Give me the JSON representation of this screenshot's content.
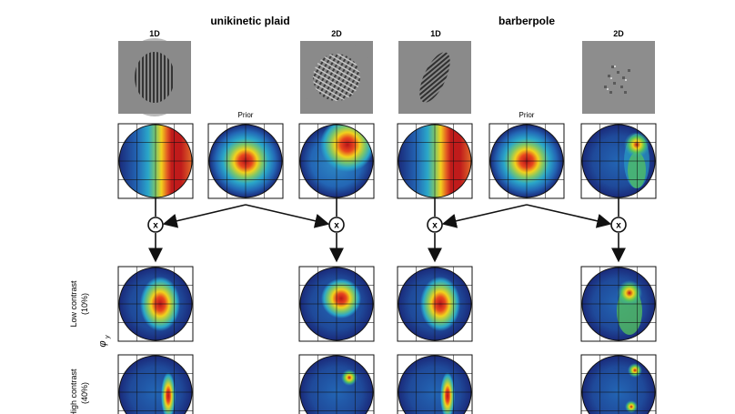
{
  "panels": {
    "left_title": "unikinetic plaid",
    "right_title": "barberpole"
  },
  "column_labels": {
    "c1": "1D",
    "c3": "2D",
    "c4": "1D",
    "c6": "2D"
  },
  "prior_labels": {
    "left": "Prior",
    "right": "Prior"
  },
  "multiply_symbol": "x",
  "row_labels": {
    "low": {
      "line1": "Low contrast",
      "line2": "(10%)"
    },
    "high": {
      "line1": "High contrast",
      "line2": "(40%)"
    },
    "axis_symbol": "φ",
    "axis_subscript": "y"
  },
  "colormap": {
    "low": "#1a2a7a",
    "mid_low": "#2aa7c9",
    "mid": "#56c45a",
    "mid_high": "#f2d21d",
    "high": "#d7191c"
  }
}
